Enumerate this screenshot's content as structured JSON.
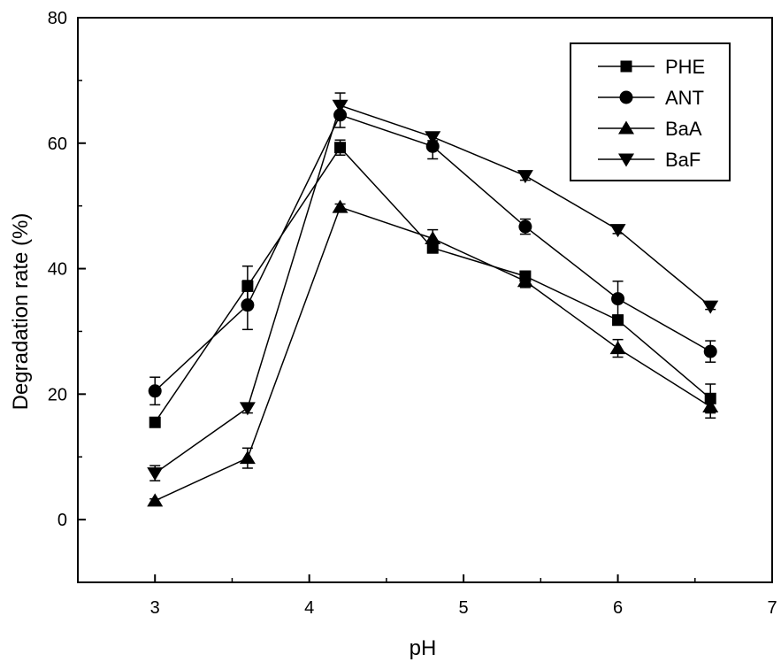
{
  "chart_data": {
    "type": "line",
    "title": "",
    "xlabel": "pH",
    "ylabel": "Degradation rate (%)",
    "xlim": [
      2.5,
      7
    ],
    "ylim": [
      -10,
      80
    ],
    "x_ticks": [
      3,
      4,
      5,
      6,
      7
    ],
    "y_ticks": [
      0,
      20,
      40,
      60,
      80
    ],
    "x_tick_labels": [
      "3",
      "4",
      "5",
      "6",
      "7"
    ],
    "y_tick_labels": [
      "0",
      "20",
      "40",
      "60",
      "80"
    ],
    "grid": false,
    "legend_position": "top-right",
    "x": [
      3.0,
      3.6,
      4.2,
      4.8,
      5.4,
      6.0,
      6.6
    ],
    "series": [
      {
        "name": "PHE",
        "marker": "square",
        "values": [
          15.5,
          37.2,
          59.3,
          43.3,
          38.8,
          31.8,
          19.3
        ],
        "errors": [
          0.5,
          3.2,
          1.2,
          0.8,
          0.8,
          0.8,
          2.3
        ]
      },
      {
        "name": "ANT",
        "marker": "circle",
        "values": [
          20.5,
          34.2,
          64.5,
          59.5,
          46.7,
          35.2,
          26.8
        ],
        "errors": [
          2.2,
          3.9,
          2.0,
          2.0,
          1.2,
          2.8,
          1.7
        ]
      },
      {
        "name": "BaA",
        "marker": "triangle-up",
        "values": [
          3.0,
          9.8,
          49.8,
          44.8,
          38.0,
          27.3,
          18.0
        ],
        "errors": [
          0.3,
          1.6,
          0.5,
          1.4,
          1.0,
          1.4,
          1.8
        ]
      },
      {
        "name": "BaF",
        "marker": "triangle-down",
        "values": [
          7.4,
          17.8,
          66.0,
          61.0,
          54.8,
          46.2,
          34.0
        ],
        "errors": [
          1.2,
          0.8,
          2.0,
          0.6,
          0.7,
          0.6,
          0.5
        ]
      }
    ]
  }
}
